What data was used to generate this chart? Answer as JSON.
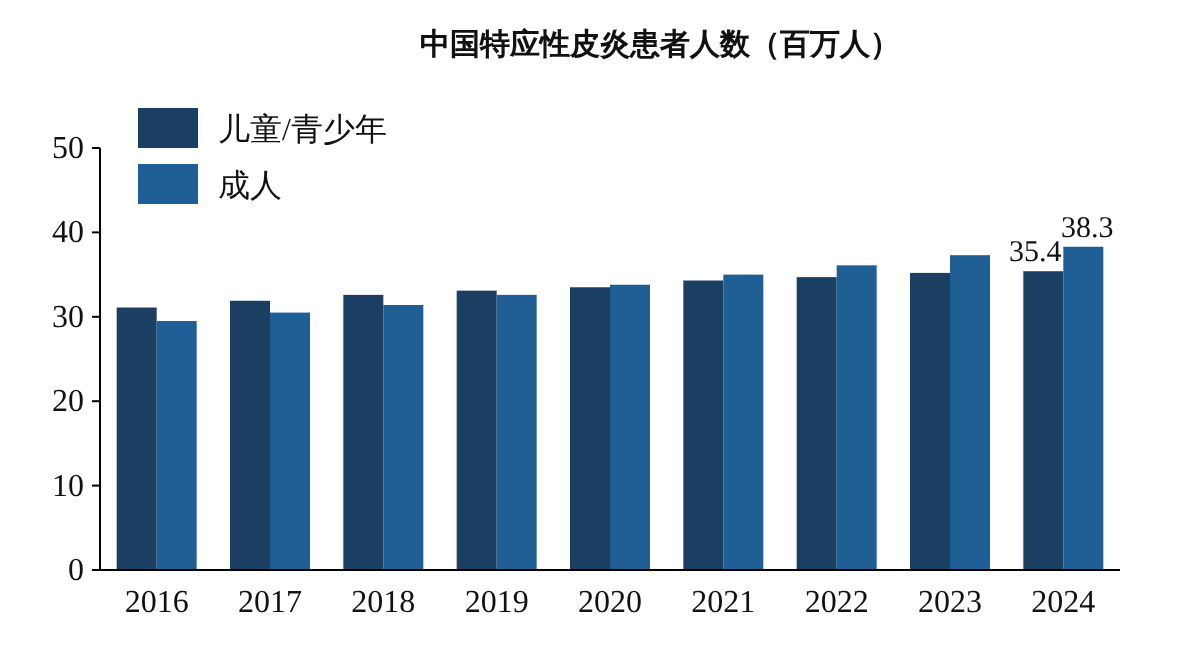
{
  "chart_data": {
    "type": "bar",
    "title": "中国特应性皮炎患者人数（百万人）",
    "categories": [
      "2016",
      "2017",
      "2018",
      "2019",
      "2020",
      "2021",
      "2022",
      "2023",
      "2024"
    ],
    "series": [
      {
        "name": "儿童/青少年",
        "color": "#1a3f63",
        "values": [
          31.1,
          31.9,
          32.6,
          33.1,
          33.5,
          34.3,
          34.7,
          35.2,
          35.4
        ],
        "value_labels": [
          null,
          null,
          null,
          null,
          null,
          null,
          null,
          null,
          "35.4"
        ]
      },
      {
        "name": "成人",
        "color": "#1f5f95",
        "values": [
          29.5,
          30.5,
          31.4,
          32.6,
          33.8,
          35.0,
          36.1,
          37.3,
          38.3
        ],
        "value_labels": [
          null,
          null,
          null,
          null,
          null,
          null,
          null,
          null,
          "38.3"
        ]
      }
    ],
    "ylim": [
      0,
      50
    ],
    "yticks": [
      0,
      10,
      20,
      30,
      40,
      50
    ],
    "legend": "top left",
    "grid": false
  }
}
